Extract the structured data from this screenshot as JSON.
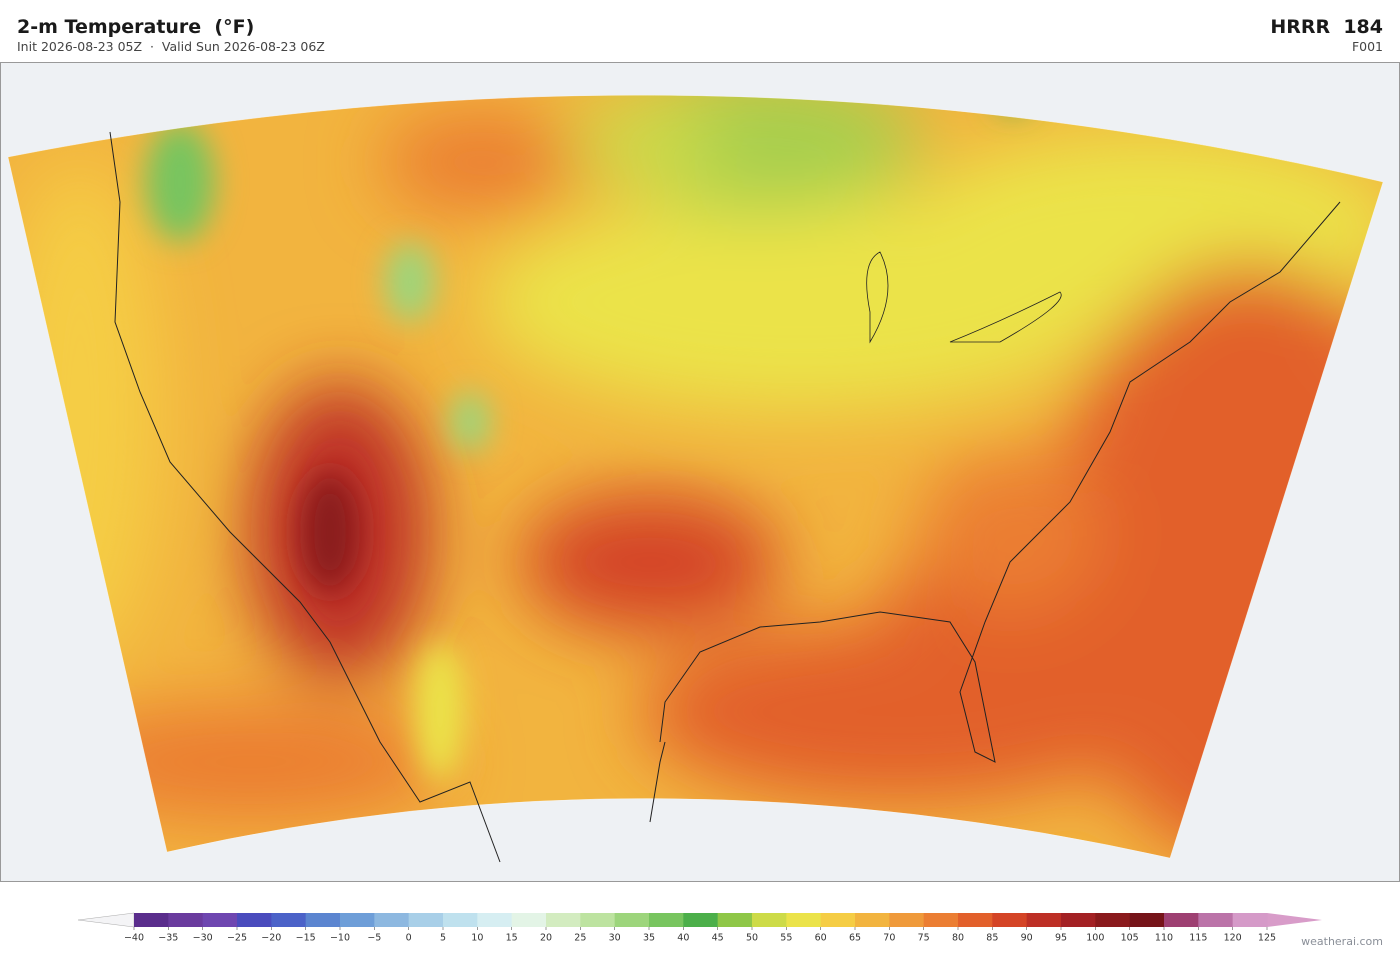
{
  "header": {
    "title": "2-m Temperature  (°F)",
    "subtitle": "Init 2026-08-23 05Z  ·  Valid Sun 2026-08-23 06Z",
    "model": "HRRR  184",
    "forecast_hour": "F001"
  },
  "colorbar": {
    "ticks": [
      {
        "value": -40,
        "label": "−40"
      },
      {
        "value": -35,
        "label": "−35"
      },
      {
        "value": -30,
        "label": "−30"
      },
      {
        "value": -25,
        "label": "−25"
      },
      {
        "value": -20,
        "label": "−20"
      },
      {
        "value": -15,
        "label": "−15"
      },
      {
        "value": -10,
        "label": "−10"
      },
      {
        "value": -5,
        "label": "−5"
      },
      0,
      5,
      10,
      15,
      20,
      25,
      30,
      35,
      40,
      45,
      50,
      55,
      60,
      65,
      70,
      75,
      80,
      85,
      90,
      95,
      100,
      105,
      110,
      115,
      120,
      125
    ],
    "colors": [
      "#5a2d8c",
      "#6a3b9e",
      "#6e46b0",
      "#4a4bbd",
      "#4b62c8",
      "#5b85d0",
      "#6e9ed8",
      "#8db8e0",
      "#a8cfe8",
      "#bfe1ee",
      "#d6eef2",
      "#e3f4e6",
      "#d3ecc0",
      "#bde3a0",
      "#9dd57c",
      "#78c55f",
      "#4caf4a",
      "#8fc748",
      "#cddb48",
      "#ebe34a",
      "#f5cd45",
      "#f2b43f",
      "#ef9a3b",
      "#eb7e33",
      "#e2602b",
      "#d44426",
      "#bd2f25",
      "#a32124",
      "#8a1a1c",
      "#761419",
      "#9e4072",
      "#bb73a8",
      "#d59ac8"
    ],
    "under_color": "#f4f4f6",
    "over_color": "#d89cc9"
  },
  "credit": "weatherai.com"
}
